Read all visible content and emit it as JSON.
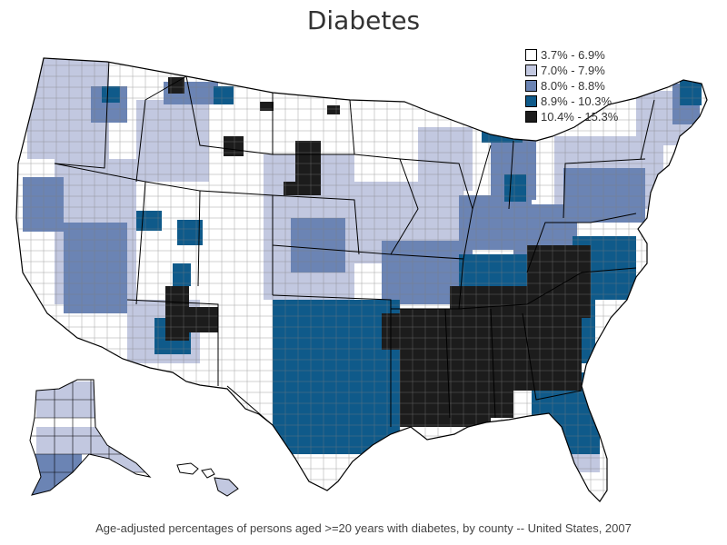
{
  "title": "Diabetes",
  "footnote": "Age-adjusted percentages of persons aged >=20 years with diabetes, by county -- United States, 2007",
  "legend": {
    "items": [
      {
        "label": "3.7% - 6.9%",
        "color": "#ffffff"
      },
      {
        "label": "7.0% - 7.9%",
        "color": "#c2c8e0"
      },
      {
        "label": "8.0% - 8.8%",
        "color": "#6b84b4"
      },
      {
        "label": "8.9% - 10.3%",
        "color": "#0f5a8a"
      },
      {
        "label": "10.4% - 15.3%",
        "color": "#1c1c1c"
      }
    ]
  },
  "map": {
    "border_color": "#000000",
    "county_line_color": "#7f7f7f"
  }
}
